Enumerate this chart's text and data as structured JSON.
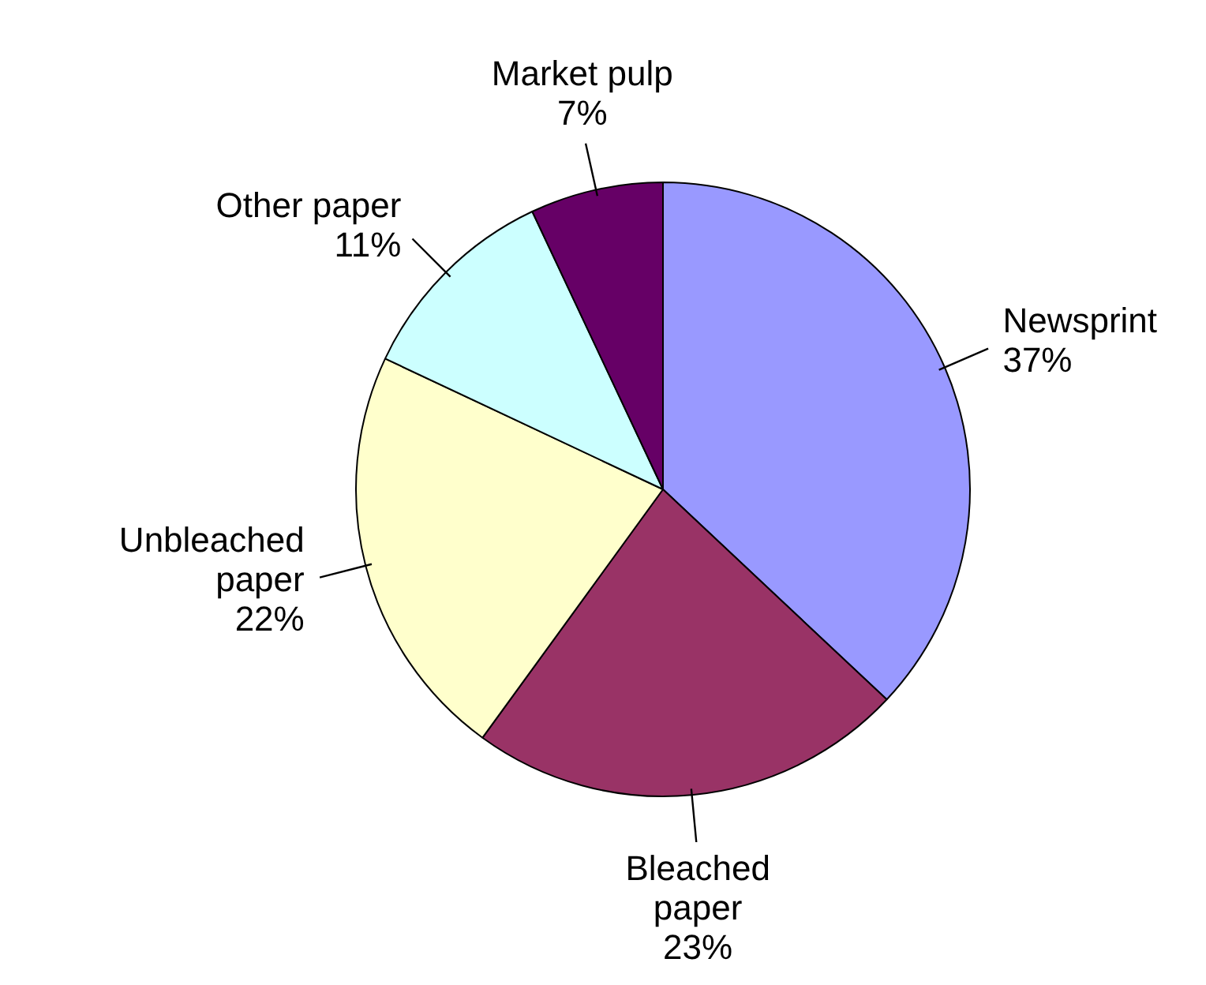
{
  "chart_data": {
    "type": "pie",
    "categories": [
      "Newsprint",
      "Bleached paper",
      "Unbleached paper",
      "Other paper",
      "Market pulp"
    ],
    "values": [
      37,
      23,
      22,
      11,
      7
    ],
    "colors": [
      "#9999ff",
      "#993366",
      "#ffffcc",
      "#ccffff",
      "#660066"
    ],
    "value_labels": [
      "37%",
      "23%",
      "22%",
      "11%",
      "7%"
    ],
    "legend": false
  }
}
